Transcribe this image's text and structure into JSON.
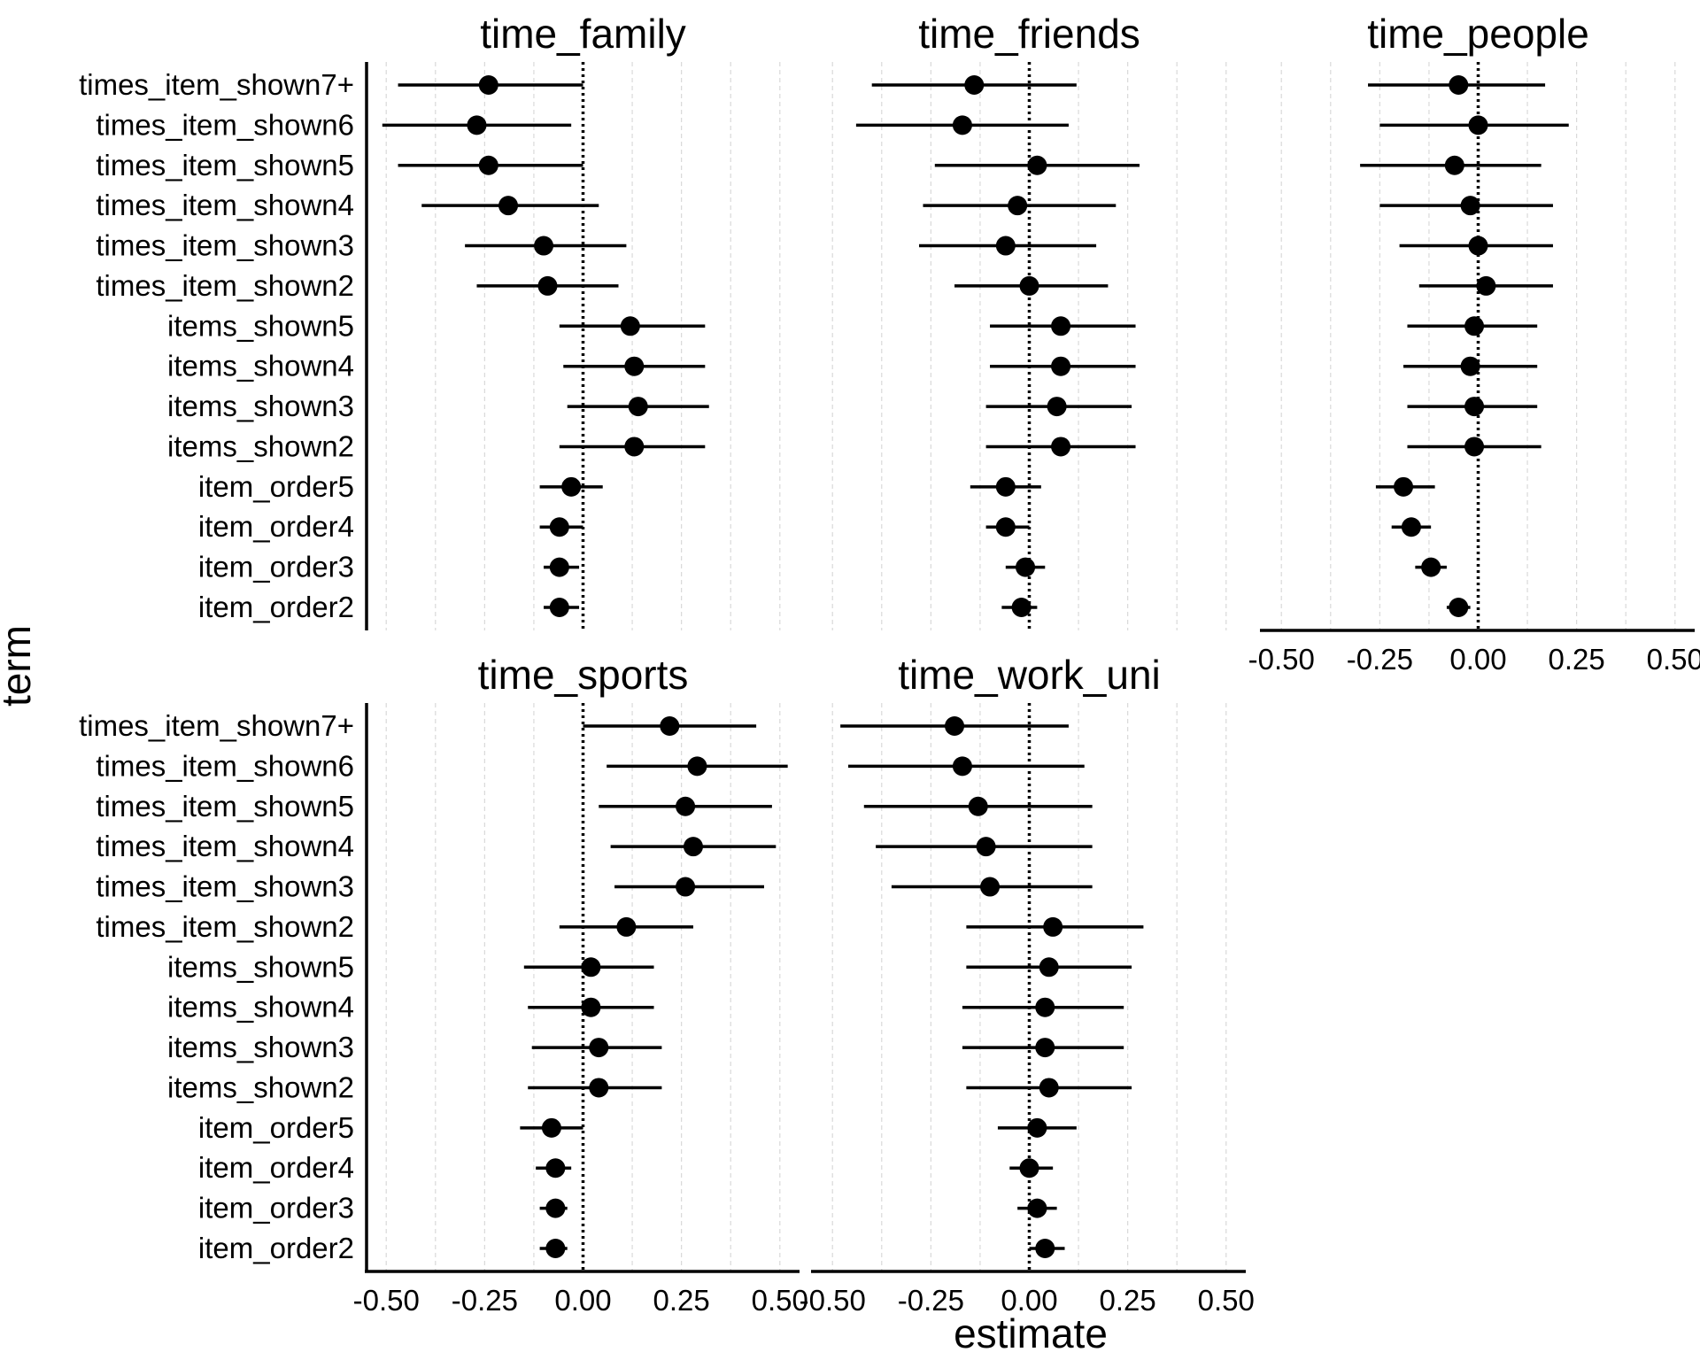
{
  "chart_data": {
    "type": "scatter",
    "xlabel": "estimate",
    "ylabel": "term",
    "xlim": [
      -0.55,
      0.55
    ],
    "xticks": [
      "-0.50",
      "-0.25",
      "0.00",
      "0.25",
      "0.50"
    ],
    "reference_line_x": 0,
    "grid": "vertical dashed",
    "terms": [
      "times_item_shown7+",
      "times_item_shown6",
      "times_item_shown5",
      "times_item_shown4",
      "times_item_shown3",
      "times_item_shown2",
      "items_shown5",
      "items_shown4",
      "items_shown3",
      "items_shown2",
      "item_order5",
      "item_order4",
      "item_order3",
      "item_order2"
    ],
    "panels": [
      {
        "title": "time_family",
        "points": [
          {
            "term": "times_item_shown7+",
            "estimate": -0.24,
            "low": -0.47,
            "high": 0.0
          },
          {
            "term": "times_item_shown6",
            "estimate": -0.27,
            "low": -0.51,
            "high": -0.03
          },
          {
            "term": "times_item_shown5",
            "estimate": -0.24,
            "low": -0.47,
            "high": 0.0
          },
          {
            "term": "times_item_shown4",
            "estimate": -0.19,
            "low": -0.41,
            "high": 0.04
          },
          {
            "term": "times_item_shown3",
            "estimate": -0.1,
            "low": -0.3,
            "high": 0.11
          },
          {
            "term": "times_item_shown2",
            "estimate": -0.09,
            "low": -0.27,
            "high": 0.09
          },
          {
            "term": "items_shown5",
            "estimate": 0.12,
            "low": -0.06,
            "high": 0.31
          },
          {
            "term": "items_shown4",
            "estimate": 0.13,
            "low": -0.05,
            "high": 0.31
          },
          {
            "term": "items_shown3",
            "estimate": 0.14,
            "low": -0.04,
            "high": 0.32
          },
          {
            "term": "items_shown2",
            "estimate": 0.13,
            "low": -0.06,
            "high": 0.31
          },
          {
            "term": "item_order5",
            "estimate": -0.03,
            "low": -0.11,
            "high": 0.05
          },
          {
            "term": "item_order4",
            "estimate": -0.06,
            "low": -0.11,
            "high": 0.0
          },
          {
            "term": "item_order3",
            "estimate": -0.06,
            "low": -0.1,
            "high": -0.01
          },
          {
            "term": "item_order2",
            "estimate": -0.06,
            "low": -0.1,
            "high": -0.01
          }
        ]
      },
      {
        "title": "time_friends",
        "points": [
          {
            "term": "times_item_shown7+",
            "estimate": -0.14,
            "low": -0.4,
            "high": 0.12
          },
          {
            "term": "times_item_shown6",
            "estimate": -0.17,
            "low": -0.44,
            "high": 0.1
          },
          {
            "term": "times_item_shown5",
            "estimate": 0.02,
            "low": -0.24,
            "high": 0.28
          },
          {
            "term": "times_item_shown4",
            "estimate": -0.03,
            "low": -0.27,
            "high": 0.22
          },
          {
            "term": "times_item_shown3",
            "estimate": -0.06,
            "low": -0.28,
            "high": 0.17
          },
          {
            "term": "times_item_shown2",
            "estimate": 0.0,
            "low": -0.19,
            "high": 0.2
          },
          {
            "term": "items_shown5",
            "estimate": 0.08,
            "low": -0.1,
            "high": 0.27
          },
          {
            "term": "items_shown4",
            "estimate": 0.08,
            "low": -0.1,
            "high": 0.27
          },
          {
            "term": "items_shown3",
            "estimate": 0.07,
            "low": -0.11,
            "high": 0.26
          },
          {
            "term": "items_shown2",
            "estimate": 0.08,
            "low": -0.11,
            "high": 0.27
          },
          {
            "term": "item_order5",
            "estimate": -0.06,
            "low": -0.15,
            "high": 0.03
          },
          {
            "term": "item_order4",
            "estimate": -0.06,
            "low": -0.11,
            "high": 0.0
          },
          {
            "term": "item_order3",
            "estimate": -0.01,
            "low": -0.06,
            "high": 0.04
          },
          {
            "term": "item_order2",
            "estimate": -0.02,
            "low": -0.07,
            "high": 0.02
          }
        ]
      },
      {
        "title": "time_people",
        "points": [
          {
            "term": "times_item_shown7+",
            "estimate": -0.05,
            "low": -0.28,
            "high": 0.17
          },
          {
            "term": "times_item_shown6",
            "estimate": 0.0,
            "low": -0.25,
            "high": 0.23
          },
          {
            "term": "times_item_shown5",
            "estimate": -0.06,
            "low": -0.3,
            "high": 0.16
          },
          {
            "term": "times_item_shown4",
            "estimate": -0.02,
            "low": -0.25,
            "high": 0.19
          },
          {
            "term": "times_item_shown3",
            "estimate": 0.0,
            "low": -0.2,
            "high": 0.19
          },
          {
            "term": "times_item_shown2",
            "estimate": 0.02,
            "low": -0.15,
            "high": 0.19
          },
          {
            "term": "items_shown5",
            "estimate": -0.01,
            "low": -0.18,
            "high": 0.15
          },
          {
            "term": "items_shown4",
            "estimate": -0.02,
            "low": -0.19,
            "high": 0.15
          },
          {
            "term": "items_shown3",
            "estimate": -0.01,
            "low": -0.18,
            "high": 0.15
          },
          {
            "term": "items_shown2",
            "estimate": -0.01,
            "low": -0.18,
            "high": 0.16
          },
          {
            "term": "item_order5",
            "estimate": -0.19,
            "low": -0.26,
            "high": -0.11
          },
          {
            "term": "item_order4",
            "estimate": -0.17,
            "low": -0.22,
            "high": -0.12
          },
          {
            "term": "item_order3",
            "estimate": -0.12,
            "low": -0.16,
            "high": -0.08
          },
          {
            "term": "item_order2",
            "estimate": -0.05,
            "low": -0.08,
            "high": -0.02
          }
        ]
      },
      {
        "title": "time_sports",
        "points": [
          {
            "term": "times_item_shown7+",
            "estimate": 0.22,
            "low": 0.0,
            "high": 0.44
          },
          {
            "term": "times_item_shown6",
            "estimate": 0.29,
            "low": 0.06,
            "high": 0.52
          },
          {
            "term": "times_item_shown5",
            "estimate": 0.26,
            "low": 0.04,
            "high": 0.48
          },
          {
            "term": "times_item_shown4",
            "estimate": 0.28,
            "low": 0.07,
            "high": 0.49
          },
          {
            "term": "times_item_shown3",
            "estimate": 0.26,
            "low": 0.08,
            "high": 0.46
          },
          {
            "term": "times_item_shown2",
            "estimate": 0.11,
            "low": -0.06,
            "high": 0.28
          },
          {
            "term": "items_shown5",
            "estimate": 0.02,
            "low": -0.15,
            "high": 0.18
          },
          {
            "term": "items_shown4",
            "estimate": 0.02,
            "low": -0.14,
            "high": 0.18
          },
          {
            "term": "items_shown3",
            "estimate": 0.04,
            "low": -0.13,
            "high": 0.2
          },
          {
            "term": "items_shown2",
            "estimate": 0.04,
            "low": -0.14,
            "high": 0.2
          },
          {
            "term": "item_order5",
            "estimate": -0.08,
            "low": -0.16,
            "high": 0.0
          },
          {
            "term": "item_order4",
            "estimate": -0.07,
            "low": -0.12,
            "high": -0.03
          },
          {
            "term": "item_order3",
            "estimate": -0.07,
            "low": -0.11,
            "high": -0.04
          },
          {
            "term": "item_order2",
            "estimate": -0.07,
            "low": -0.11,
            "high": -0.04
          }
        ]
      },
      {
        "title": "time_work_uni",
        "points": [
          {
            "term": "times_item_shown7+",
            "estimate": -0.19,
            "low": -0.48,
            "high": 0.1
          },
          {
            "term": "times_item_shown6",
            "estimate": -0.17,
            "low": -0.46,
            "high": 0.14
          },
          {
            "term": "times_item_shown5",
            "estimate": -0.13,
            "low": -0.42,
            "high": 0.16
          },
          {
            "term": "times_item_shown4",
            "estimate": -0.11,
            "low": -0.39,
            "high": 0.16
          },
          {
            "term": "times_item_shown3",
            "estimate": -0.1,
            "low": -0.35,
            "high": 0.16
          },
          {
            "term": "times_item_shown2",
            "estimate": 0.06,
            "low": -0.16,
            "high": 0.29
          },
          {
            "term": "items_shown5",
            "estimate": 0.05,
            "low": -0.16,
            "high": 0.26
          },
          {
            "term": "items_shown4",
            "estimate": 0.04,
            "low": -0.17,
            "high": 0.24
          },
          {
            "term": "items_shown3",
            "estimate": 0.04,
            "low": -0.17,
            "high": 0.24
          },
          {
            "term": "items_shown2",
            "estimate": 0.05,
            "low": -0.16,
            "high": 0.26
          },
          {
            "term": "item_order5",
            "estimate": 0.02,
            "low": -0.08,
            "high": 0.12
          },
          {
            "term": "item_order4",
            "estimate": 0.0,
            "low": -0.05,
            "high": 0.06
          },
          {
            "term": "item_order3",
            "estimate": 0.02,
            "low": -0.03,
            "high": 0.07
          },
          {
            "term": "item_order2",
            "estimate": 0.04,
            "low": 0.0,
            "high": 0.09
          }
        ]
      }
    ]
  }
}
